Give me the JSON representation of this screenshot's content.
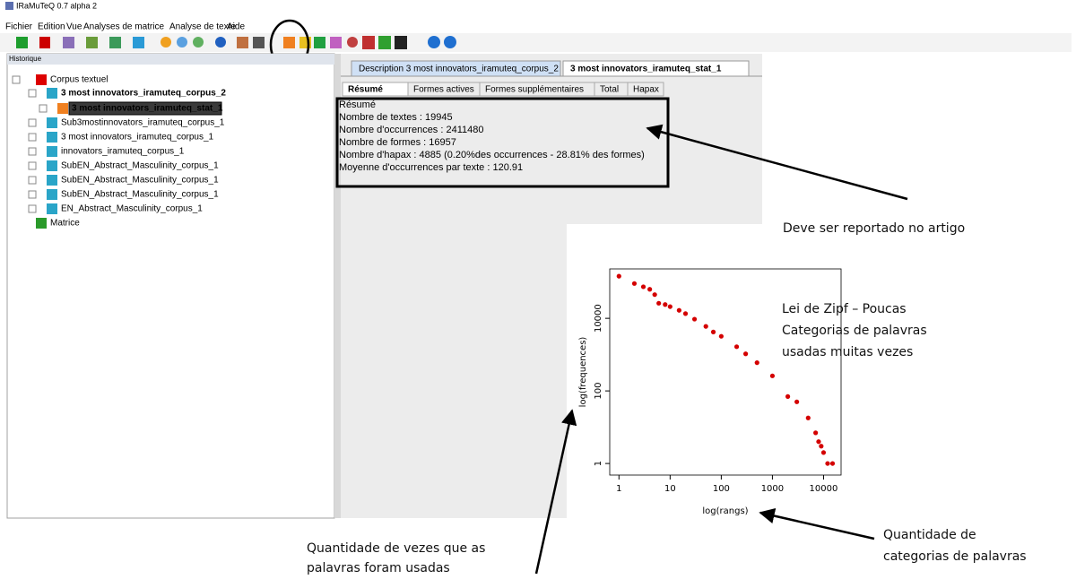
{
  "window": {
    "title": "IRaMuTeQ 0.7 alpha 2"
  },
  "menu": [
    "Fichier",
    "Edition",
    "Vue",
    "Analyses de matrice",
    "Analyse de texte",
    "Aide"
  ],
  "history": {
    "title": "Historique",
    "nodes": [
      "Corpus textuel",
      "3 most innovators_iramuteq_corpus_2",
      "3 most innovators_iramuteq_stat_1",
      "Sub3mostinnovators_iramuteq_corpus_1",
      "3 most innovators_iramuteq_corpus_1",
      "innovators_iramuteq_corpus_1",
      "SubEN_Abstract_Masculinity_corpus_1",
      "SubEN_Abstract_Masculinity_corpus_1",
      "SubEN_Abstract_Masculinity_corpus_1",
      "EN_Abstract_Masculinity_corpus_1",
      "Matrice"
    ]
  },
  "tabs": [
    "Description 3 most innovators_iramuteq_corpus_2",
    "3 most innovators_iramuteq_stat_1"
  ],
  "subtabs": [
    "Résumé",
    "Formes actives",
    "Formes supplémentaires",
    "Total",
    "Hapax"
  ],
  "summary": [
    "Résumé",
    "Nombre de textes : 19945",
    "Nombre d'occurrences : 2411480",
    "Nombre de formes : 16957",
    "Nombre d'hapax : 4885 (0.20%des occurrences - 28.81% des formes)",
    "Moyenne d'occurrences par texte : 120.91"
  ],
  "annotations": {
    "report": "Deve ser reportado no artigo",
    "zipf": [
      "Lei de Zipf – Poucas",
      "Categorias de palavras",
      "usadas muitas vezes"
    ],
    "y_note": [
      "Quantidade de vezes que as",
      "palavras foram usadas"
    ],
    "x_note": [
      "Quantidade de",
      "categorias de palavras"
    ]
  },
  "chart_data": {
    "type": "scatter",
    "xlabel": "log(rangs)",
    "ylabel": "log(frequences)",
    "log_x": true,
    "log_y": true,
    "color": "#d40000",
    "xlim": [
      0.66,
      22000
    ],
    "ylim": [
      0.48,
      230000
    ],
    "xticks": [
      1,
      10,
      100,
      1000,
      10000
    ],
    "yticks": [
      1,
      100,
      10000
    ],
    "x": [
      1,
      2,
      3,
      4,
      5,
      6,
      8,
      10,
      15,
      20,
      30,
      50,
      70,
      100,
      200,
      300,
      500,
      1000,
      2000,
      3000,
      5000,
      7000,
      8000,
      9000,
      10000,
      12000,
      15000
    ],
    "values": [
      145000,
      91000,
      74000,
      63000,
      45000,
      26000,
      24000,
      21000,
      16600,
      13500,
      9500,
      6000,
      4200,
      3200,
      1650,
      1050,
      600,
      260,
      70,
      50,
      18,
      7,
      4,
      3,
      2,
      1,
      1
    ]
  }
}
